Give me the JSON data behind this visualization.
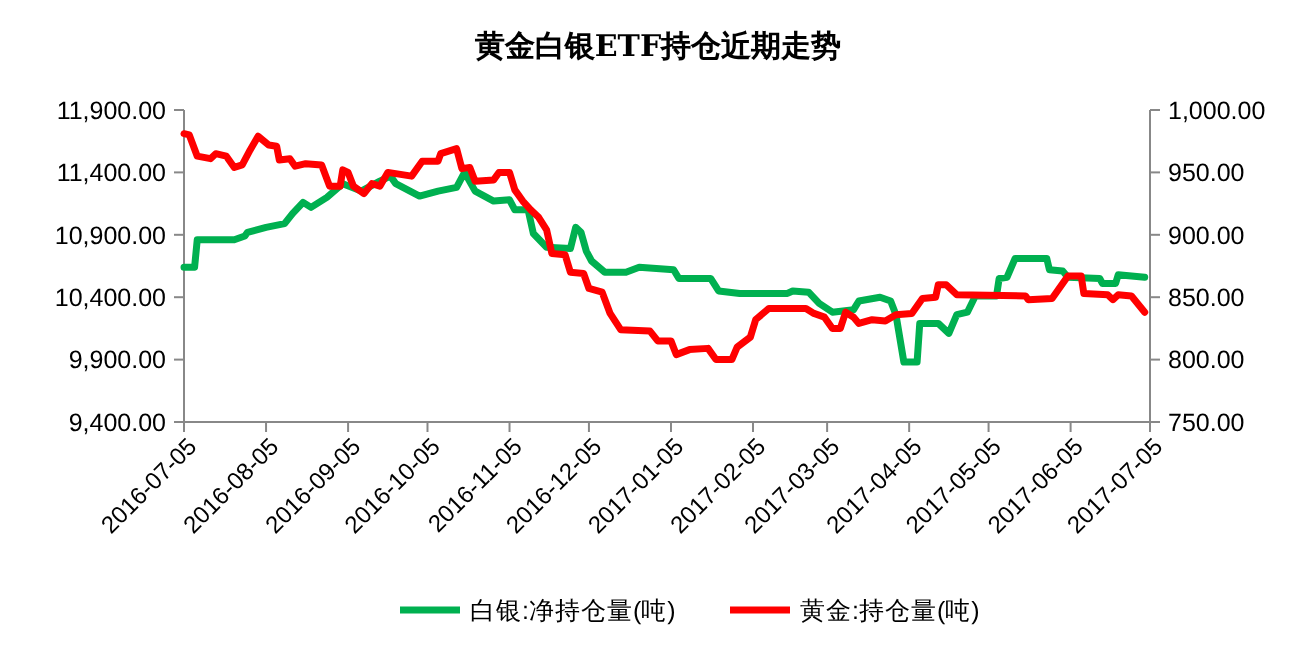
{
  "chart_data": {
    "type": "line",
    "title": "黄金白银ETF持仓近期走势",
    "legend": "bottom",
    "xlim": [
      "2016-07-05",
      "2017-07-05"
    ],
    "xticks": [
      "2016-07-05",
      "2016-08-05",
      "2016-09-05",
      "2016-10-05",
      "2016-11-05",
      "2016-12-05",
      "2017-01-05",
      "2017-02-05",
      "2017-03-05",
      "2017-04-05",
      "2017-05-05",
      "2017-06-05",
      "2017-07-05"
    ],
    "ylim": [
      9400,
      11900
    ],
    "yticks": [
      {
        "value": 9400,
        "label": "9,400.00"
      },
      {
        "value": 9900,
        "label": "9,900.00"
      },
      {
        "value": 10400,
        "label": "10,400.00"
      },
      {
        "value": 10900,
        "label": "10,900.00"
      },
      {
        "value": 11400,
        "label": "11,400.00"
      },
      {
        "value": 11900,
        "label": "11,900.00"
      }
    ],
    "y2lim": [
      750,
      1000
    ],
    "y2ticks": [
      {
        "value": 750,
        "label": "750.00"
      },
      {
        "value": 800,
        "label": "800.00"
      },
      {
        "value": 850,
        "label": "850.00"
      },
      {
        "value": 900,
        "label": "900.00"
      },
      {
        "value": 950,
        "label": "950.00"
      },
      {
        "value": 1000,
        "label": "1,000.00"
      }
    ],
    "series": [
      {
        "name": "白银:净持仓量(吨)",
        "color": "#00b050",
        "x": [
          "2016-07-05",
          "2016-07-09",
          "2016-07-10",
          "2016-07-24",
          "2016-07-28",
          "2016-07-29",
          "2016-08-05",
          "2016-08-12",
          "2016-08-15",
          "2016-08-19",
          "2016-08-22",
          "2016-08-28",
          "2016-09-03",
          "2016-09-10",
          "2016-09-17",
          "2016-09-21",
          "2016-09-23",
          "2016-10-02",
          "2016-10-09",
          "2016-10-16",
          "2016-10-19",
          "2016-10-23",
          "2016-10-30",
          "2016-11-05",
          "2016-11-07",
          "2016-11-12",
          "2016-11-14",
          "2016-11-19",
          "2016-11-28",
          "2016-11-30",
          "2016-12-02",
          "2016-12-04",
          "2016-12-06",
          "2016-12-11",
          "2016-12-19",
          "2016-12-24",
          "2017-01-06",
          "2017-01-08",
          "2017-01-20",
          "2017-01-23",
          "2017-01-31",
          "2017-02-18",
          "2017-02-20",
          "2017-02-26",
          "2017-03-02",
          "2017-03-07",
          "2017-03-15",
          "2017-03-17",
          "2017-03-25",
          "2017-03-29",
          "2017-03-31",
          "2017-04-03",
          "2017-04-08",
          "2017-04-09",
          "2017-04-16",
          "2017-04-20",
          "2017-04-23",
          "2017-04-27",
          "2017-04-30",
          "2017-05-08",
          "2017-05-09",
          "2017-05-12",
          "2017-05-15",
          "2017-05-27",
          "2017-05-28",
          "2017-06-02",
          "2017-06-04",
          "2017-06-16",
          "2017-06-17",
          "2017-06-22",
          "2017-06-23",
          "2017-07-03"
        ],
        "values": [
          10640,
          10640,
          10860,
          10860,
          10890,
          10920,
          10960,
          10990,
          11070,
          11160,
          11120,
          11200,
          11310,
          11250,
          11330,
          11370,
          11310,
          11210,
          11250,
          11280,
          11400,
          11250,
          11170,
          11180,
          11100,
          11100,
          10910,
          10800,
          10790,
          10960,
          10920,
          10770,
          10690,
          10600,
          10600,
          10640,
          10620,
          10550,
          10550,
          10450,
          10430,
          10430,
          10450,
          10440,
          10350,
          10280,
          10300,
          10370,
          10400,
          10370,
          10260,
          9880,
          9880,
          10190,
          10190,
          10110,
          10260,
          10280,
          10410,
          10410,
          10550,
          10560,
          10710,
          10710,
          10620,
          10610,
          10560,
          10550,
          10510,
          10510,
          10580,
          10560
        ]
      },
      {
        "name": "黄金:持仓量(吨)",
        "color": "#ff0000",
        "axis": "y2",
        "x": [
          "2016-07-05",
          "2016-07-07",
          "2016-07-10",
          "2016-07-15",
          "2016-07-17",
          "2016-07-21",
          "2016-07-24",
          "2016-07-27",
          "2016-07-30",
          "2016-08-02",
          "2016-08-06",
          "2016-08-09",
          "2016-08-10",
          "2016-08-14",
          "2016-08-16",
          "2016-08-20",
          "2016-08-26",
          "2016-08-29",
          "2016-09-02",
          "2016-09-03",
          "2016-09-05",
          "2016-09-07",
          "2016-09-11",
          "2016-09-14",
          "2016-09-17",
          "2016-09-20",
          "2016-09-29",
          "2016-10-03",
          "2016-10-09",
          "2016-10-10",
          "2016-10-16",
          "2016-10-18",
          "2016-10-21",
          "2016-10-23",
          "2016-10-30",
          "2016-11-01",
          "2016-11-05",
          "2016-11-07",
          "2016-11-10",
          "2016-11-13",
          "2016-11-16",
          "2016-11-19",
          "2016-11-21",
          "2016-11-26",
          "2016-11-28",
          "2016-12-03",
          "2016-12-05",
          "2016-12-10",
          "2016-12-13",
          "2016-12-17",
          "2016-12-28",
          "2016-12-31",
          "2017-01-05",
          "2017-01-07",
          "2017-01-12",
          "2017-01-19",
          "2017-01-22",
          "2017-01-28",
          "2017-01-30",
          "2017-02-04",
          "2017-02-06",
          "2017-02-11",
          "2017-02-25",
          "2017-02-28",
          "2017-03-04",
          "2017-03-07",
          "2017-03-10",
          "2017-03-12",
          "2017-03-15",
          "2017-03-17",
          "2017-03-22",
          "2017-03-27",
          "2017-03-31",
          "2017-04-06",
          "2017-04-10",
          "2017-04-15",
          "2017-04-16",
          "2017-04-19",
          "2017-04-23",
          "2017-05-19",
          "2017-05-20",
          "2017-05-29",
          "2017-06-04",
          "2017-06-09",
          "2017-06-10",
          "2017-06-19",
          "2017-06-21",
          "2017-06-23",
          "2017-06-28",
          "2017-07-03"
        ],
        "values": [
          981,
          980,
          963,
          961,
          965,
          963,
          954,
          956,
          968,
          979,
          972,
          971,
          960,
          961,
          955,
          957,
          956,
          939,
          939,
          952,
          950,
          939,
          933,
          941,
          939,
          950,
          947,
          959,
          959,
          965,
          969,
          953,
          954,
          943,
          944,
          950,
          950,
          936,
          927,
          920,
          914,
          904,
          885,
          884,
          870,
          869,
          857,
          854,
          837,
          824,
          823,
          815,
          815,
          804,
          808,
          809,
          800,
          800,
          810,
          818,
          832,
          841,
          841,
          837,
          834,
          825,
          825,
          838,
          834,
          829,
          832,
          831,
          836,
          837,
          849,
          850,
          860,
          860,
          852,
          851,
          848,
          849,
          867,
          867,
          853,
          852,
          848,
          852,
          851,
          838
        ]
      }
    ]
  }
}
